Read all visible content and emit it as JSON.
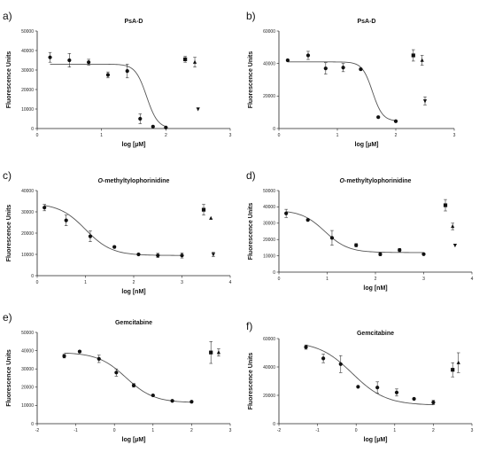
{
  "chart_data": [
    {
      "panel": "a)",
      "type": "scatter",
      "title": "PsA-D",
      "title_italic_part": "",
      "xlabel": "log [µM]",
      "ylabel": "Fluorescence Units",
      "xlim": [
        0,
        3
      ],
      "ylim": [
        0,
        50000
      ],
      "xticks": [
        0,
        1,
        2,
        3
      ],
      "yticks": [
        0,
        10000,
        20000,
        30000,
        40000,
        50000
      ],
      "curve": {
        "top": 33000,
        "bottom": 0,
        "ec50_log": 1.7,
        "hill": -5
      },
      "series": [
        {
          "marker": "circle",
          "x": [
            0.2,
            0.5,
            0.8,
            1.1,
            1.4,
            1.6,
            1.8,
            2.0
          ],
          "y": [
            36500,
            35000,
            34000,
            27500,
            29500,
            5000,
            1000,
            500
          ],
          "err": [
            2500,
            3500,
            1500,
            1500,
            3500,
            2500,
            500,
            300
          ]
        },
        {
          "marker": "square",
          "x": [
            2.3
          ],
          "y": [
            35500
          ],
          "err": [
            1500
          ]
        },
        {
          "marker": "triangle-up",
          "x": [
            2.45
          ],
          "y": [
            34000
          ],
          "err": [
            2500
          ]
        },
        {
          "marker": "triangle-down",
          "x": [
            2.5
          ],
          "y": [
            10000
          ],
          "err": [
            0
          ]
        }
      ]
    },
    {
      "panel": "b)",
      "type": "scatter",
      "title": "PsA-D",
      "title_italic_part": "",
      "xlabel": "log [µM]",
      "ylabel": "Fluorescence Units",
      "xlim": [
        0,
        3
      ],
      "ylim": [
        0,
        60000
      ],
      "xticks": [
        0,
        1,
        2,
        3
      ],
      "yticks": [
        0,
        20000,
        40000,
        60000
      ],
      "curve": {
        "top": 41000,
        "bottom": 4500,
        "ec50_log": 1.6,
        "hill": -5
      },
      "series": [
        {
          "marker": "circle",
          "x": [
            0.15,
            0.5,
            0.8,
            1.1,
            1.4,
            1.7,
            2.0
          ],
          "y": [
            42000,
            45000,
            37000,
            37500,
            36500,
            7000,
            4500
          ],
          "err": [
            500,
            2500,
            3500,
            2500,
            500,
            500,
            500
          ]
        },
        {
          "marker": "square",
          "x": [
            2.3
          ],
          "y": [
            45000
          ],
          "err": [
            3500
          ]
        },
        {
          "marker": "triangle-up",
          "x": [
            2.45
          ],
          "y": [
            42000
          ],
          "err": [
            3000
          ]
        },
        {
          "marker": "triangle-down",
          "x": [
            2.5
          ],
          "y": [
            17000
          ],
          "err": [
            2500
          ]
        }
      ]
    },
    {
      "panel": "c)",
      "type": "scatter",
      "title": "-methyltylophorinidine",
      "title_italic_part": "O",
      "xlabel": "log [nM]",
      "ylabel": "Fluorescence Units",
      "xlim": [
        0,
        4
      ],
      "ylim": [
        0,
        40000
      ],
      "xticks": [
        0,
        1,
        2,
        3,
        4
      ],
      "yticks": [
        0,
        10000,
        20000,
        30000,
        40000
      ],
      "curve": {
        "top": 34000,
        "bottom": 9500,
        "ec50_log": 1.0,
        "hill": -1.6
      },
      "series": [
        {
          "marker": "circle",
          "x": [
            0.15,
            0.6,
            1.1,
            1.6,
            2.1,
            2.5,
            3.0
          ],
          "y": [
            32000,
            26000,
            18500,
            13500,
            10000,
            9500,
            9500
          ],
          "err": [
            1500,
            2500,
            2500,
            500,
            300,
            1000,
            1200
          ]
        },
        {
          "marker": "square",
          "x": [
            3.45
          ],
          "y": [
            31000
          ],
          "err": [
            2500
          ]
        },
        {
          "marker": "triangle-up",
          "x": [
            3.6
          ],
          "y": [
            27000
          ],
          "err": [
            0
          ]
        },
        {
          "marker": "triangle-down",
          "x": [
            3.65
          ],
          "y": [
            10000
          ],
          "err": [
            1000
          ]
        }
      ]
    },
    {
      "panel": "d)",
      "type": "scatter",
      "title": "-methyltylophorinidine",
      "title_italic_part": "O",
      "xlabel": "log [nM]",
      "ylabel": "Fluorescence Units",
      "xlim": [
        0,
        4
      ],
      "ylim": [
        0,
        50000
      ],
      "xticks": [
        0,
        1,
        2,
        3,
        4
      ],
      "yticks": [
        0,
        10000,
        20000,
        30000,
        40000,
        50000
      ],
      "curve": {
        "top": 38000,
        "bottom": 12000,
        "ec50_log": 0.95,
        "hill": -1.8
      },
      "series": [
        {
          "marker": "circle",
          "x": [
            0.15,
            0.6,
            1.1,
            1.6,
            2.1,
            2.5,
            3.0
          ],
          "y": [
            36000,
            32000,
            21000,
            16500,
            11000,
            13500,
            11000
          ],
          "err": [
            2500,
            500,
            4500,
            1000,
            1000,
            1000,
            300
          ]
        },
        {
          "marker": "square",
          "x": [
            3.45
          ],
          "y": [
            41000
          ],
          "err": [
            3500
          ]
        },
        {
          "marker": "triangle-up",
          "x": [
            3.6
          ],
          "y": [
            28000
          ],
          "err": [
            2000
          ]
        },
        {
          "marker": "triangle-down",
          "x": [
            3.65
          ],
          "y": [
            16500
          ],
          "err": [
            0
          ]
        }
      ]
    },
    {
      "panel": "e)",
      "type": "scatter",
      "title": "Gemcitabine",
      "title_italic_part": "",
      "xlabel": "log [µM]",
      "ylabel": "Fluorescence Units",
      "xlim": [
        -2,
        3
      ],
      "ylim": [
        0,
        50000
      ],
      "xticks": [
        -2,
        -1,
        0,
        1,
        2,
        3
      ],
      "yticks": [
        0,
        10000,
        20000,
        30000,
        40000,
        50000
      ],
      "curve": {
        "top": 39000,
        "bottom": 11500,
        "ec50_log": 0.3,
        "hill": -1.2
      },
      "series": [
        {
          "marker": "circle",
          "x": [
            -1.3,
            -0.9,
            -0.4,
            0.05,
            0.5,
            1.0,
            1.5,
            2.0
          ],
          "y": [
            37000,
            39500,
            35500,
            28000,
            21000,
            15500,
            12500,
            12000
          ],
          "err": [
            1000,
            500,
            2000,
            2000,
            1000,
            300,
            300,
            300
          ]
        },
        {
          "marker": "square",
          "x": [
            2.5
          ],
          "y": [
            39000
          ],
          "err": [
            6000
          ]
        },
        {
          "marker": "triangle-up",
          "x": [
            2.7
          ],
          "y": [
            39000
          ],
          "err": [
            2000
          ]
        }
      ]
    },
    {
      "panel": "f)",
      "type": "scatter",
      "title": "Gemcitabine",
      "title_italic_part": "",
      "xlabel": "log [µM]",
      "ylabel": "Fluorescence Units",
      "xlim": [
        -2,
        3
      ],
      "ylim": [
        0,
        60000
      ],
      "xticks": [
        -2,
        -1,
        0,
        1,
        2,
        3
      ],
      "yticks": [
        0,
        20000,
        40000,
        60000
      ],
      "curve": {
        "top": 58000,
        "bottom": 13000,
        "ec50_log": -0.1,
        "hill": -1.0
      },
      "series": [
        {
          "marker": "circle",
          "x": [
            -1.3,
            -0.85,
            -0.4,
            0.05,
            0.55,
            1.05,
            1.5,
            2.0
          ],
          "y": [
            54000,
            46000,
            42000,
            26000,
            25500,
            22000,
            17500,
            15000
          ],
          "err": [
            1500,
            3000,
            6000,
            0,
            4000,
            2500,
            500,
            1500
          ]
        },
        {
          "marker": "square",
          "x": [
            2.5
          ],
          "y": [
            38000
          ],
          "err": [
            5000
          ]
        },
        {
          "marker": "triangle-up",
          "x": [
            2.65
          ],
          "y": [
            43000
          ],
          "err": [
            7000
          ]
        }
      ]
    }
  ]
}
